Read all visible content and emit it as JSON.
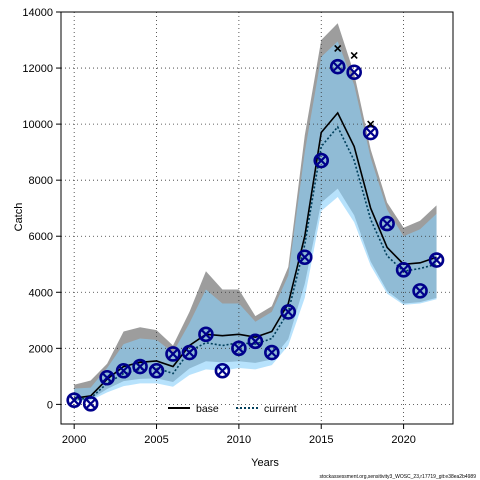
{
  "chart_data": {
    "type": "line",
    "xlabel": "Years",
    "ylabel": "Catch",
    "xlim": [
      1999.2,
      2023.0
    ],
    "ylim": [
      -700,
      14000
    ],
    "x_ticks": [
      2000,
      2005,
      2010,
      2015,
      2020
    ],
    "y_ticks": [
      0,
      2000,
      4000,
      6000,
      8000,
      10000,
      12000,
      14000
    ],
    "grid": true,
    "legend_position": "bottom-center",
    "footnote": "stockassessment.org,sensitivity3_WOSC_23,r17719_git:e38ea2b4989",
    "x": [
      2000,
      2001,
      2002,
      2003,
      2004,
      2005,
      2006,
      2007,
      2008,
      2009,
      2010,
      2011,
      2012,
      2013,
      2014,
      2015,
      2016,
      2017,
      2018,
      2019,
      2020,
      2021,
      2022
    ],
    "series": [
      {
        "name": "base",
        "line_color": "#000000",
        "band_color": "#8c8c8c",
        "values": [
          220,
          300,
          900,
          1350,
          1500,
          1550,
          1350,
          2100,
          2500,
          2450,
          2500,
          2400,
          2600,
          3600,
          6000,
          9700,
          10400,
          9200,
          7000,
          5600,
          5000,
          5050,
          5250
        ],
        "lower": [
          120,
          180,
          550,
          830,
          910,
          930,
          800,
          1280,
          1540,
          1500,
          1540,
          1480,
          1600,
          2330,
          4300,
          7200,
          7700,
          6750,
          5100,
          4050,
          3600,
          3650,
          3800
        ],
        "upper": [
          700,
          850,
          1450,
          2600,
          2750,
          2650,
          2100,
          3300,
          4750,
          4100,
          4100,
          3150,
          3500,
          4900,
          9600,
          13000,
          13600,
          11800,
          9100,
          7200,
          6300,
          6550,
          7100
        ]
      },
      {
        "name": "current",
        "line_color": "#003f5c",
        "band_color": "#87cefa",
        "values": [
          180,
          220,
          750,
          1100,
          1250,
          1300,
          1100,
          1900,
          2200,
          2100,
          2200,
          2150,
          2350,
          3300,
          5700,
          9200,
          9900,
          8700,
          6600,
          5300,
          4750,
          4850,
          5000
        ],
        "lower": [
          110,
          140,
          430,
          650,
          750,
          750,
          630,
          1050,
          1250,
          1200,
          1300,
          1250,
          1400,
          2100,
          3800,
          6900,
          7400,
          6500,
          4950,
          3950,
          3550,
          3600,
          3750
        ],
        "upper": [
          560,
          600,
          1300,
          2150,
          2350,
          2300,
          1850,
          2900,
          4100,
          3600,
          3600,
          2950,
          3300,
          4600,
          9000,
          12400,
          12950,
          11400,
          8800,
          6950,
          6000,
          6250,
          6800
        ]
      }
    ],
    "observed_catch": {
      "marker": "circle-with-x",
      "color": "#00008b",
      "years": [
        2000,
        2001,
        2002,
        2003,
        2004,
        2005,
        2006,
        2007,
        2008,
        2009,
        2010,
        2011,
        2012,
        2013,
        2014,
        2015,
        2016,
        2017,
        2018,
        2019,
        2020,
        2021,
        2022
      ],
      "values": [
        150,
        20,
        950,
        1200,
        1350,
        1200,
        1800,
        1850,
        2500,
        1200,
        2000,
        2250,
        1850,
        3300,
        5250,
        8700,
        12050,
        11850,
        9700,
        6450,
        4800,
        4050,
        5150
      ]
    },
    "base_observed": {
      "marker": "x",
      "color": "#000000",
      "years": [
        2016,
        2017,
        2018
      ],
      "values": [
        12700,
        12450,
        10000
      ]
    },
    "legend": [
      {
        "label": "base",
        "style": "solid",
        "color": "#000000"
      },
      {
        "label": "current",
        "style": "dotted",
        "color": "#003f5c"
      }
    ]
  }
}
